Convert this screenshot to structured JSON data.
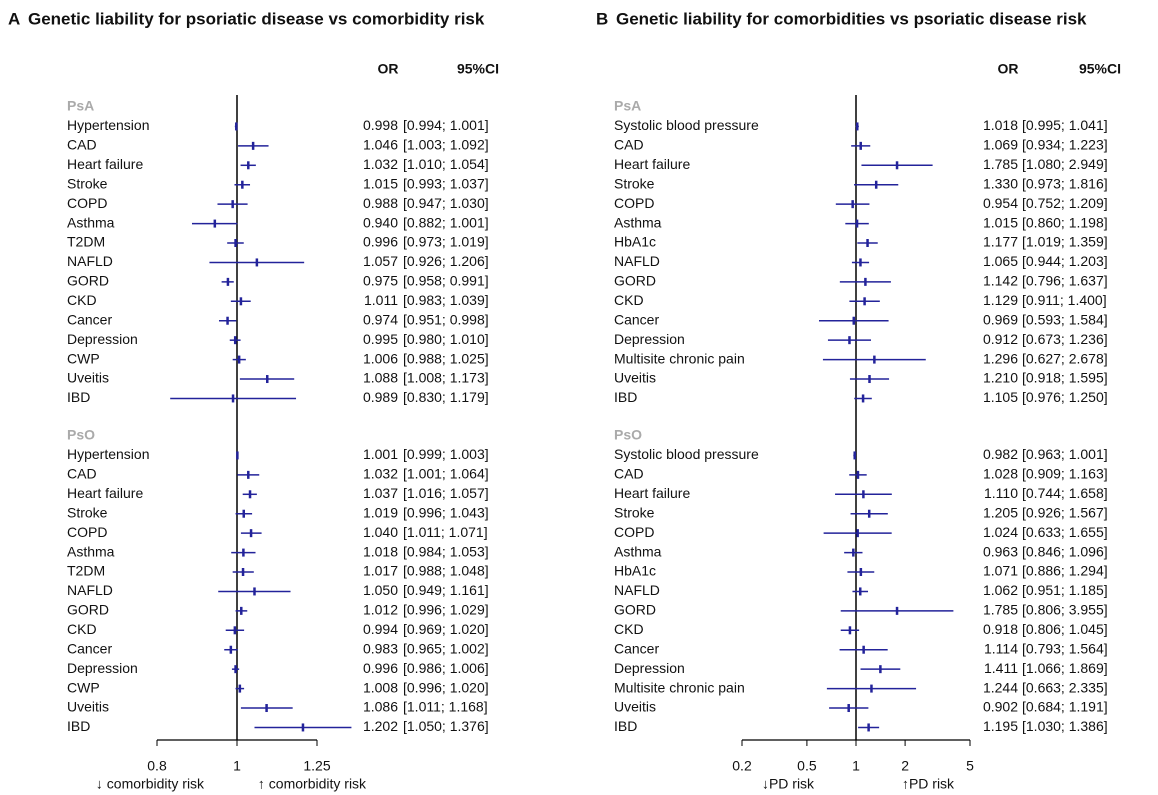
{
  "chart_data": [
    {
      "type": "forest",
      "panel": "A",
      "title": "Genetic liability for psoriatic disease vs comorbidity risk",
      "or_header": "OR",
      "ci_header": "95%CI",
      "xscale": "log",
      "xlim": [
        0.8,
        1.25
      ],
      "xticks": [
        0.8,
        1,
        1.25
      ],
      "reference_line": 1,
      "xlabel_left": "↓ comorbidity risk",
      "xlabel_right": "↑ comorbidity risk",
      "color": "#23239a",
      "groups": [
        {
          "name": "PsA",
          "categories": [
            "Hypertension",
            "CAD",
            "Heart failure",
            "Stroke",
            "COPD",
            "Asthma",
            "T2DM",
            "NAFLD",
            "GORD",
            "CKD",
            "Cancer",
            "Depression",
            "CWP",
            "Uveitis",
            "IBD"
          ],
          "values": [
            0.998,
            1.046,
            1.032,
            1.015,
            0.988,
            0.94,
            0.996,
            1.057,
            0.975,
            1.011,
            0.974,
            0.995,
            1.006,
            1.088,
            0.989
          ],
          "value_labels": [
            "0.998",
            "1.046",
            "1.032",
            "1.015",
            "0.988",
            "0.940",
            "0.996",
            "1.057",
            "0.975",
            "1.011",
            "0.974",
            "0.995",
            "1.006",
            "1.088",
            "0.989"
          ],
          "lower": [
            0.994,
            1.003,
            1.01,
            0.993,
            0.947,
            0.882,
            0.973,
            0.926,
            0.958,
            0.983,
            0.951,
            0.98,
            0.988,
            1.008,
            0.83
          ],
          "upper": [
            1.001,
            1.092,
            1.054,
            1.037,
            1.03,
            1.001,
            1.019,
            1.206,
            0.991,
            1.039,
            0.998,
            1.01,
            1.025,
            1.173,
            1.179
          ],
          "ci_labels": [
            "[0.994; 1.001]",
            "[1.003; 1.092]",
            "[1.010; 1.054]",
            "[0.993; 1.037]",
            "[0.947; 1.030]",
            "[0.882; 1.001]",
            "[0.973; 1.019]",
            "[0.926; 1.206]",
            "[0.958; 0.991]",
            "[0.983; 1.039]",
            "[0.951; 0.998]",
            "[0.980; 1.010]",
            "[0.988; 1.025]",
            "[1.008; 1.173]",
            "[0.830; 1.179]"
          ]
        },
        {
          "name": "PsO",
          "categories": [
            "Hypertension",
            "CAD",
            "Heart failure",
            "Stroke",
            "COPD",
            "Asthma",
            "T2DM",
            "NAFLD",
            "GORD",
            "CKD",
            "Cancer",
            "Depression",
            "CWP",
            "Uveitis",
            "IBD"
          ],
          "values": [
            1.001,
            1.032,
            1.037,
            1.019,
            1.04,
            1.018,
            1.017,
            1.05,
            1.012,
            0.994,
            0.983,
            0.996,
            1.008,
            1.086,
            1.202
          ],
          "value_labels": [
            "1.001",
            "1.032",
            "1.037",
            "1.019",
            "1.040",
            "1.018",
            "1.017",
            "1.050",
            "1.012",
            "0.994",
            "0.983",
            "0.996",
            "1.008",
            "1.086",
            "1.202"
          ],
          "lower": [
            0.999,
            1.001,
            1.016,
            0.996,
            1.011,
            0.984,
            0.988,
            0.949,
            0.996,
            0.969,
            0.965,
            0.986,
            0.996,
            1.011,
            1.05
          ],
          "upper": [
            1.003,
            1.064,
            1.057,
            1.043,
            1.071,
            1.053,
            1.048,
            1.161,
            1.029,
            1.02,
            1.002,
            1.006,
            1.02,
            1.168,
            1.376
          ],
          "ci_labels": [
            "[0.999; 1.003]",
            "[1.001; 1.064]",
            "[1.016; 1.057]",
            "[0.996; 1.043]",
            "[1.011; 1.071]",
            "[0.984; 1.053]",
            "[0.988; 1.048]",
            "[0.949; 1.161]",
            "[0.996; 1.029]",
            "[0.969; 1.020]",
            "[0.965; 1.002]",
            "[0.986; 1.006]",
            "[0.996; 1.020]",
            "[1.011; 1.168]",
            "[1.050; 1.376]"
          ]
        }
      ]
    },
    {
      "type": "forest",
      "panel": "B",
      "title": "Genetic liability for comorbidities vs psoriatic disease risk",
      "or_header": "OR",
      "ci_header": "95%CI",
      "xscale": "log",
      "xlim": [
        0.2,
        5
      ],
      "xticks": [
        0.2,
        0.5,
        1,
        2,
        5
      ],
      "reference_line": 1,
      "xlabel_left": "↓PD risk",
      "xlabel_right": "↑PD risk",
      "color": "#23239a",
      "groups": [
        {
          "name": "PsA",
          "categories": [
            "Systolic blood pressure",
            "CAD",
            "Heart failure",
            "Stroke",
            "COPD",
            "Asthma",
            "HbA1c",
            "NAFLD",
            "GORD",
            "CKD",
            "Cancer",
            "Depression",
            "Multisite chronic pain",
            "Uveitis",
            "IBD"
          ],
          "values": [
            1.018,
            1.069,
            1.785,
            1.33,
            0.954,
            1.015,
            1.177,
            1.065,
            1.142,
            1.129,
            0.969,
            0.912,
            1.296,
            1.21,
            1.105
          ],
          "value_labels": [
            "1.018",
            "1.069",
            "1.785",
            "1.330",
            "0.954",
            "1.015",
            "1.177",
            "1.065",
            "1.142",
            "1.129",
            "0.969",
            "0.912",
            "1.296",
            "1.210",
            "1.105"
          ],
          "lower": [
            0.995,
            0.934,
            1.08,
            0.973,
            0.752,
            0.86,
            1.019,
            0.944,
            0.796,
            0.911,
            0.593,
            0.673,
            0.627,
            0.918,
            0.976
          ],
          "upper": [
            1.041,
            1.223,
            2.949,
            1.816,
            1.209,
            1.198,
            1.359,
            1.203,
            1.637,
            1.4,
            1.584,
            1.236,
            2.678,
            1.595,
            1.25
          ],
          "ci_labels": [
            "[0.995; 1.041]",
            "[0.934; 1.223]",
            "[1.080; 2.949]",
            "[0.973; 1.816]",
            "[0.752; 1.209]",
            "[0.860; 1.198]",
            "[1.019; 1.359]",
            "[0.944; 1.203]",
            "[0.796; 1.637]",
            "[0.911; 1.400]",
            "[0.593; 1.584]",
            "[0.673; 1.236]",
            "[0.627; 2.678]",
            "[0.918; 1.595]",
            "[0.976; 1.250]"
          ]
        },
        {
          "name": "PsO",
          "categories": [
            "Systolic blood pressure",
            "CAD",
            "Heart failure",
            "Stroke",
            "COPD",
            "Asthma",
            "HbA1c",
            "NAFLD",
            "GORD",
            "CKD",
            "Cancer",
            "Depression",
            "Multisite chronic pain",
            "Uveitis",
            "IBD"
          ],
          "values": [
            0.982,
            1.028,
            1.11,
            1.205,
            1.024,
            0.963,
            1.071,
            1.062,
            1.785,
            0.918,
            1.114,
            1.411,
            1.244,
            0.902,
            1.195
          ],
          "value_labels": [
            "0.982",
            "1.028",
            "1.110",
            "1.205",
            "1.024",
            "0.963",
            "1.071",
            "1.062",
            "1.785",
            "0.918",
            "1.114",
            "1.411",
            "1.244",
            "0.902",
            "1.195"
          ],
          "lower": [
            0.963,
            0.909,
            0.744,
            0.926,
            0.633,
            0.846,
            0.886,
            0.951,
            0.806,
            0.806,
            0.793,
            1.066,
            0.663,
            0.684,
            1.03
          ],
          "upper": [
            1.001,
            1.163,
            1.658,
            1.567,
            1.655,
            1.096,
            1.294,
            1.185,
            3.955,
            1.045,
            1.564,
            1.869,
            2.335,
            1.191,
            1.386
          ],
          "ci_labels": [
            "[0.963; 1.001]",
            "[0.909; 1.163]",
            "[0.744; 1.658]",
            "[0.926; 1.567]",
            "[0.633; 1.655]",
            "[0.846; 1.096]",
            "[0.886; 1.294]",
            "[0.951; 1.185]",
            "[0.806; 3.955]",
            "[0.806; 1.045]",
            "[0.793; 1.564]",
            "[1.066; 1.869]",
            "[0.663; 2.335]",
            "[0.684; 1.191]",
            "[1.030; 1.386]"
          ]
        }
      ]
    }
  ]
}
